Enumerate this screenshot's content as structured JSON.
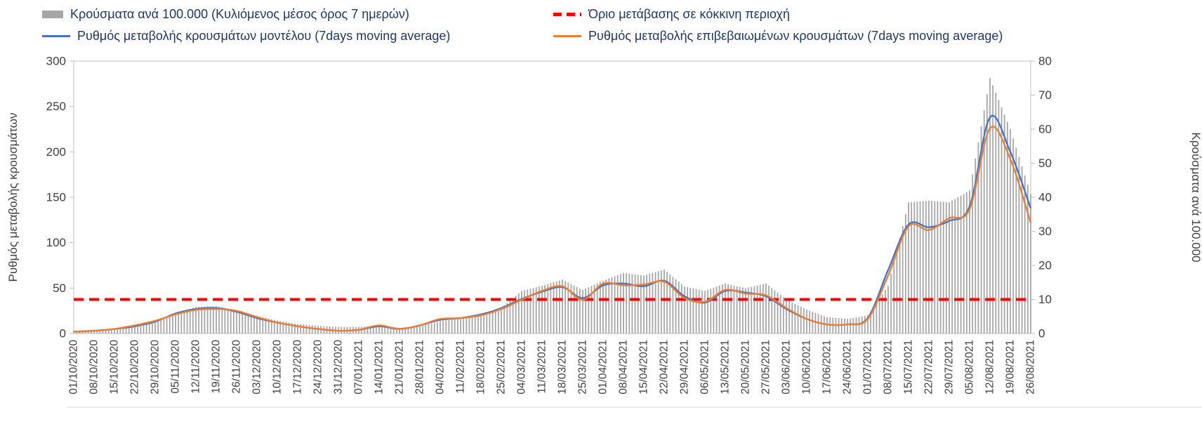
{
  "colors": {
    "bars": "#a6a6a6",
    "threshold": "#ff0000",
    "model_line": "#4472c4",
    "confirmed_line": "#ed7d31",
    "legend_text": "#1f3864",
    "axis_text": "#3f3f3f",
    "plot_border": "#bfbfbf",
    "bottom_rule": "#d9d9d9"
  },
  "chart_data": {
    "type": "combo",
    "legend_position": "top",
    "grid": false,
    "x_labels": [
      "01/10/2020",
      "08/10/2020",
      "15/10/2020",
      "22/10/2020",
      "29/10/2020",
      "05/11/2020",
      "12/11/2020",
      "19/11/2020",
      "26/11/2020",
      "03/12/2020",
      "10/12/2020",
      "17/12/2020",
      "24/12/2020",
      "31/12/2020",
      "07/01/2021",
      "14/01/2021",
      "21/01/2021",
      "28/01/2021",
      "04/02/2021",
      "11/02/2021",
      "18/02/2021",
      "25/02/2021",
      "04/03/2021",
      "11/03/2021",
      "18/03/2021",
      "25/03/2021",
      "01/04/2021",
      "08/04/2021",
      "15/04/2021",
      "22/04/2021",
      "29/04/2021",
      "06/05/2021",
      "13/05/2021",
      "20/05/2021",
      "27/05/2021",
      "03/06/2021",
      "10/06/2021",
      "17/06/2021",
      "24/06/2021",
      "01/07/2021",
      "08/07/2021",
      "15/07/2021",
      "22/07/2021",
      "29/07/2021",
      "05/08/2021",
      "12/08/2021",
      "19/08/2021",
      "26/08/2021"
    ],
    "left_axis": {
      "title": "Ρυθμός μεταβολής κρουσμάτων",
      "min": 0,
      "max": 300,
      "step": 50,
      "ticks": [
        0,
        50,
        100,
        150,
        200,
        250,
        300
      ]
    },
    "right_axis": {
      "title": "Κρούσματα ανά 100.000",
      "min": 0,
      "max": 80,
      "step": 10,
      "ticks": [
        0,
        10,
        20,
        30,
        40,
        50,
        60,
        70,
        80
      ]
    },
    "series": [
      {
        "name": "Κρούσματα ανά 100.000 (Κυλιόμενος μέσος όρος 7 ημερών)",
        "type": "bar",
        "axis": "right",
        "color": "#a6a6a6",
        "values": [
          0.8,
          1.1,
          1.5,
          2.1,
          3.2,
          6,
          7.8,
          8,
          6.9,
          5.2,
          3.8,
          2.8,
          2.3,
          1.9,
          1.9,
          2.4,
          1.7,
          2.1,
          3.6,
          4.4,
          5.5,
          7.5,
          12.5,
          14,
          15.8,
          12.8,
          15.5,
          17.8,
          17,
          18.8,
          13.8,
          12.5,
          14.7,
          13.3,
          14.7,
          10,
          7,
          4.8,
          4.3,
          5.3,
          14,
          38.5,
          39,
          38.5,
          42,
          75,
          60,
          41
        ]
      },
      {
        "name": "Όριο μετάβασης σε κόκκινη περιοχή",
        "type": "threshold-line",
        "axis": "right",
        "color": "#ff0000",
        "style": "dashed",
        "value": 10
      },
      {
        "name": "Ρυθμός μεταβολής κρουσμάτων μοντέλου (7days moving average)",
        "type": "line",
        "axis": "left",
        "color": "#4472c4",
        "values": [
          2,
          3,
          5,
          8,
          13,
          22,
          27,
          28,
          24,
          17,
          12,
          8,
          5,
          3,
          4,
          8,
          5,
          9,
          15,
          17,
          21,
          28,
          38,
          46,
          51,
          39,
          53,
          55,
          52,
          58,
          41,
          34,
          47,
          45,
          41,
          27,
          16,
          10,
          10,
          17,
          70,
          120,
          117,
          124,
          140,
          238,
          200,
          138
        ]
      },
      {
        "name": "Ρυθμός μεταβολής επιβεβαιωμένων κρουσμάτων (7days moving average)",
        "type": "line",
        "axis": "left",
        "color": "#ed7d31",
        "values": [
          2,
          3,
          5,
          9,
          14,
          21,
          26,
          27,
          25,
          18,
          12,
          8,
          5,
          3,
          4,
          9,
          5,
          9,
          16,
          17,
          20,
          27,
          37,
          47,
          52,
          37,
          55,
          53,
          54,
          57,
          39,
          35,
          48,
          44,
          42,
          28,
          16,
          10,
          10,
          16,
          64,
          118,
          114,
          127,
          137,
          226,
          192,
          122
        ]
      }
    ]
  }
}
